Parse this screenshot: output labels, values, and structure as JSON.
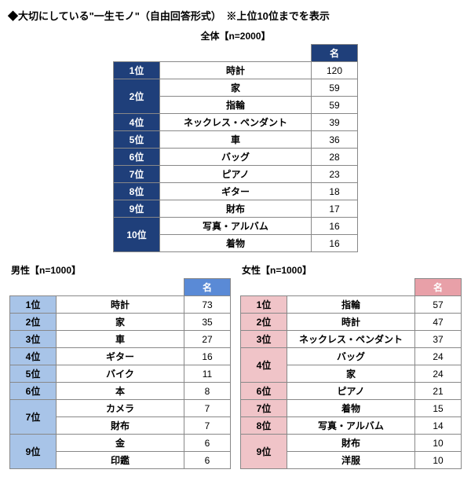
{
  "title": "◆大切にしている\"一生モノ\"（自由回答形式）　※上位10位までを表示",
  "col_label": "名",
  "overall": {
    "caption": "全体【n=2000】",
    "header_bg": "#1f3f7a",
    "rank_bg": "#1f3f7a",
    "rows": [
      {
        "rank": "1位",
        "span": 1,
        "item": "時計",
        "val": "120"
      },
      {
        "rank": "2位",
        "span": 2,
        "item": "家",
        "val": "59"
      },
      {
        "item": "指輪",
        "val": "59"
      },
      {
        "rank": "4位",
        "span": 1,
        "item": "ネックレス・ペンダント",
        "val": "39"
      },
      {
        "rank": "5位",
        "span": 1,
        "item": "車",
        "val": "36"
      },
      {
        "rank": "6位",
        "span": 1,
        "item": "バッグ",
        "val": "28"
      },
      {
        "rank": "7位",
        "span": 1,
        "item": "ピアノ",
        "val": "23"
      },
      {
        "rank": "8位",
        "span": 1,
        "item": "ギター",
        "val": "18"
      },
      {
        "rank": "9位",
        "span": 1,
        "item": "財布",
        "val": "17"
      },
      {
        "rank": "10位",
        "span": 2,
        "item": "写真・アルバム",
        "val": "16"
      },
      {
        "item": "着物",
        "val": "16"
      }
    ]
  },
  "male": {
    "caption": "男性【n=1000】",
    "header_bg": "#5a8ad6",
    "rank_bg": "#a8c4e8",
    "rank_text": "#000000",
    "rows": [
      {
        "rank": "1位",
        "span": 1,
        "item": "時計",
        "val": "73"
      },
      {
        "rank": "2位",
        "span": 1,
        "item": "家",
        "val": "35"
      },
      {
        "rank": "3位",
        "span": 1,
        "item": "車",
        "val": "27"
      },
      {
        "rank": "4位",
        "span": 1,
        "item": "ギター",
        "val": "16"
      },
      {
        "rank": "5位",
        "span": 1,
        "item": "バイク",
        "val": "11"
      },
      {
        "rank": "6位",
        "span": 1,
        "item": "本",
        "val": "8"
      },
      {
        "rank": "7位",
        "span": 2,
        "item": "カメラ",
        "val": "7"
      },
      {
        "item": "財布",
        "val": "7"
      },
      {
        "rank": "9位",
        "span": 2,
        "item": "金",
        "val": "6"
      },
      {
        "item": "印鑑",
        "val": "6"
      }
    ]
  },
  "female": {
    "caption": "女性【n=1000】",
    "header_bg": "#e8a0a8",
    "rank_bg": "#f0c4c8",
    "rank_text": "#000000",
    "rows": [
      {
        "rank": "1位",
        "span": 1,
        "item": "指輪",
        "val": "57"
      },
      {
        "rank": "2位",
        "span": 1,
        "item": "時計",
        "val": "47"
      },
      {
        "rank": "3位",
        "span": 1,
        "item": "ネックレス・ペンダント",
        "val": "37"
      },
      {
        "rank": "4位",
        "span": 2,
        "item": "バッグ",
        "val": "24"
      },
      {
        "item": "家",
        "val": "24"
      },
      {
        "rank": "6位",
        "span": 1,
        "item": "ピアノ",
        "val": "21"
      },
      {
        "rank": "7位",
        "span": 1,
        "item": "着物",
        "val": "15"
      },
      {
        "rank": "8位",
        "span": 1,
        "item": "写真・アルバム",
        "val": "14"
      },
      {
        "rank": "9位",
        "span": 2,
        "item": "財布",
        "val": "10"
      },
      {
        "item": "洋服",
        "val": "10"
      }
    ]
  }
}
